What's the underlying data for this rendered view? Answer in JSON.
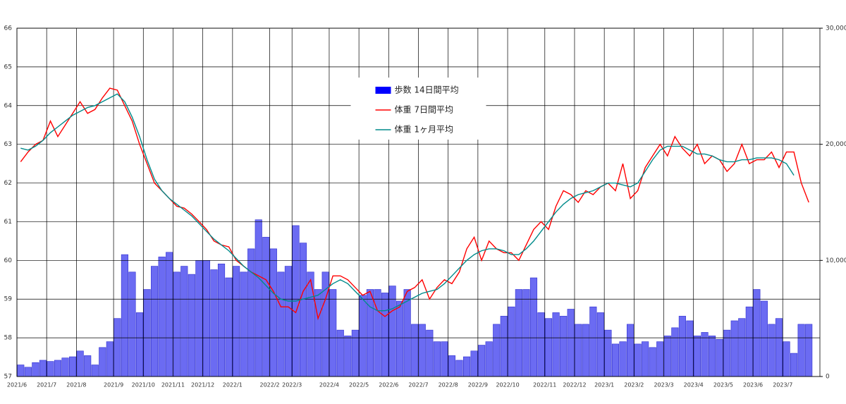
{
  "chart_data": {
    "type": "bar-line",
    "categories": [
      "2021/6",
      null,
      null,
      null,
      "2021/7",
      null,
      null,
      null,
      "2021/8",
      null,
      null,
      null,
      null,
      "2021/9",
      null,
      null,
      null,
      "2021/10",
      null,
      null,
      null,
      "2021/11",
      null,
      null,
      null,
      "2021/12",
      null,
      null,
      null,
      "2022/1",
      null,
      null,
      null,
      null,
      "2022/2",
      null,
      null,
      "2022/3",
      null,
      null,
      null,
      null,
      "2022/4",
      null,
      null,
      null,
      "2022/5",
      null,
      null,
      null,
      "2022/6",
      null,
      null,
      null,
      "2022/7",
      null,
      null,
      null,
      "2022/8",
      null,
      null,
      null,
      "2022/9",
      null,
      null,
      null,
      "2022/10",
      null,
      null,
      null,
      null,
      "2022/11",
      null,
      null,
      null,
      "2022/12",
      null,
      null,
      null,
      "2023/1",
      null,
      null,
      null,
      "2023/2",
      null,
      null,
      null,
      "2023/3",
      null,
      null,
      null,
      "2023/4",
      null,
      null,
      null,
      "2023/5",
      null,
      null,
      null,
      "2023/6",
      null,
      null,
      null,
      "2023/7",
      null,
      null,
      null,
      null
    ],
    "series": [
      {
        "name": "歩数 14日間平均",
        "type": "bar",
        "axis": "y2",
        "color": "#6b6bf2",
        "values": [
          1000,
          800,
          1200,
          1400,
          1300,
          1400,
          1600,
          1700,
          2200,
          1800,
          1000,
          2500,
          3000,
          5000,
          10500,
          9000,
          5500,
          7500,
          9500,
          10300,
          10700,
          9000,
          9500,
          8800,
          10000,
          10000,
          9200,
          9700,
          8500,
          9500,
          9000,
          11000,
          13500,
          12000,
          11000,
          9000,
          9500,
          13000,
          11500,
          9000,
          7500,
          9000,
          7500,
          4000,
          3500,
          4000,
          7000,
          7500,
          7500,
          7200,
          7800,
          6500,
          7500,
          4500,
          4500,
          4000,
          3000,
          3000,
          1800,
          1400,
          1700,
          2200,
          2700,
          3000,
          4500,
          5200,
          6000,
          7500,
          7500,
          8500,
          5500,
          5000,
          5500,
          5200,
          5800,
          4500,
          4500,
          6000,
          5500,
          4000,
          2800,
          3000,
          4500,
          2800,
          3000,
          2500,
          3000,
          3500,
          4200,
          5200,
          4800,
          3500,
          3800,
          3500,
          3200,
          4000,
          4800,
          5000,
          6000,
          7500,
          6500,
          4500,
          5000,
          3000,
          2000,
          4500,
          4500,
          null
        ]
      },
      {
        "name": "体重 7日間平均",
        "type": "line",
        "color": "#ff0000",
        "values": [
          62.55,
          62.8,
          63.0,
          63.1,
          63.6,
          63.2,
          63.5,
          63.8,
          64.1,
          63.8,
          63.9,
          64.2,
          64.45,
          64.4,
          64.0,
          63.6,
          63.0,
          62.5,
          62.0,
          61.8,
          61.6,
          61.4,
          61.35,
          61.2,
          61.0,
          60.8,
          60.5,
          60.4,
          60.35,
          60.0,
          59.85,
          59.7,
          59.6,
          59.5,
          59.2,
          58.8,
          58.8,
          58.65,
          59.2,
          59.5,
          58.5,
          59.0,
          59.6,
          59.6,
          59.5,
          59.3,
          59.1,
          59.2,
          58.7,
          58.55,
          58.7,
          58.8,
          59.2,
          59.3,
          59.5,
          59.0,
          59.3,
          59.5,
          59.4,
          59.7,
          60.3,
          60.6,
          60.0,
          60.5,
          60.3,
          60.2,
          60.2,
          60.0,
          60.4,
          60.8,
          61.0,
          60.8,
          61.4,
          61.8,
          61.7,
          61.5,
          61.8,
          61.7,
          61.9,
          62.0,
          61.8,
          62.5,
          61.6,
          61.8,
          62.4,
          62.7,
          63.0,
          62.7,
          63.2,
          62.9,
          62.7,
          63.0,
          62.5,
          62.7,
          62.6,
          62.3,
          62.5,
          63.0,
          62.5,
          62.6,
          62.6,
          62.8,
          62.4,
          62.8,
          62.8,
          62.0,
          61.5,
          null
        ]
      },
      {
        "name": "体重 1ヶ月平均",
        "type": "line",
        "color": "#008b8b",
        "values": [
          62.9,
          62.85,
          62.95,
          63.1,
          63.3,
          63.45,
          63.6,
          63.75,
          63.85,
          63.95,
          64.0,
          64.1,
          64.2,
          64.3,
          64.1,
          63.7,
          63.2,
          62.6,
          62.1,
          61.8,
          61.6,
          61.45,
          61.3,
          61.15,
          60.95,
          60.75,
          60.55,
          60.4,
          60.25,
          60.05,
          59.85,
          59.7,
          59.55,
          59.35,
          59.15,
          59.0,
          58.95,
          58.95,
          59.0,
          59.05,
          59.1,
          59.25,
          59.4,
          59.5,
          59.4,
          59.2,
          59.0,
          58.8,
          58.7,
          58.7,
          58.75,
          58.85,
          58.95,
          59.05,
          59.15,
          59.2,
          59.25,
          59.4,
          59.6,
          59.8,
          60.0,
          60.15,
          60.25,
          60.3,
          60.3,
          60.25,
          60.15,
          60.15,
          60.3,
          60.5,
          60.75,
          61.0,
          61.25,
          61.45,
          61.6,
          61.7,
          61.75,
          61.8,
          61.9,
          62.0,
          62.0,
          61.95,
          61.9,
          62.0,
          62.3,
          62.6,
          62.85,
          62.95,
          62.95,
          62.95,
          62.85,
          62.75,
          62.75,
          62.7,
          62.6,
          62.55,
          62.55,
          62.6,
          62.6,
          62.65,
          62.65,
          62.65,
          62.6,
          62.5,
          62.2,
          null,
          null,
          null
        ]
      }
    ],
    "ylim": [
      57,
      66
    ],
    "yticks": [
      57,
      58,
      59,
      60,
      61,
      62,
      63,
      64,
      65,
      66
    ],
    "y2lim": [
      0,
      30000
    ],
    "y2ticks": [
      0,
      {
        "value": 10000,
        "label": "10,000"
      },
      {
        "value": 20000,
        "label": "20,000"
      },
      {
        "value": 30000,
        "label": "30,000"
      }
    ],
    "grid": true,
    "legend": "upper center"
  }
}
